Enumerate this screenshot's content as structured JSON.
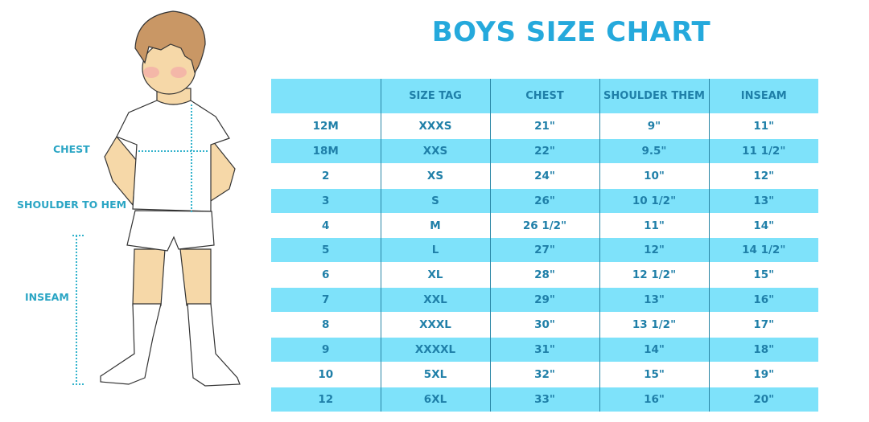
{
  "title": "BOYS SIZE CHART",
  "measure_labels": {
    "chest": "CHEST",
    "shoulder_to_hem": "SHOULDER TO HEM",
    "inseam": "INSEAM"
  },
  "colors": {
    "accent": "#7ee2fa",
    "title": "#25a9dc",
    "text": "#1f7fa8"
  },
  "table": {
    "headers": [
      "",
      "SIZE TAG",
      "CHEST",
      "SHOULDER THEM",
      "INSEAM"
    ],
    "rows": [
      [
        "12M",
        "XXXS",
        "21\"",
        "9\"",
        "11\""
      ],
      [
        "18M",
        "XXS",
        "22\"",
        "9.5\"",
        "11 1/2\""
      ],
      [
        "2",
        "XS",
        "24\"",
        "10\"",
        "12\""
      ],
      [
        "3",
        "S",
        "26\"",
        "10 1/2\"",
        "13\""
      ],
      [
        "4",
        "M",
        "26 1/2\"",
        "11\"",
        "14\""
      ],
      [
        "5",
        "L",
        "27\"",
        "12\"",
        "14 1/2\""
      ],
      [
        "6",
        "XL",
        "28\"",
        "12 1/2\"",
        "15\""
      ],
      [
        "7",
        "XXL",
        "29\"",
        "13\"",
        "16\""
      ],
      [
        "8",
        "XXXL",
        "30\"",
        "13 1/2\"",
        "17\""
      ],
      [
        "9",
        "XXXXL",
        "31\"",
        "14\"",
        "18\""
      ],
      [
        "10",
        "5XL",
        "32\"",
        "15\"",
        "19\""
      ],
      [
        "12",
        "6XL",
        "33\"",
        "16\"",
        "20\""
      ]
    ]
  }
}
